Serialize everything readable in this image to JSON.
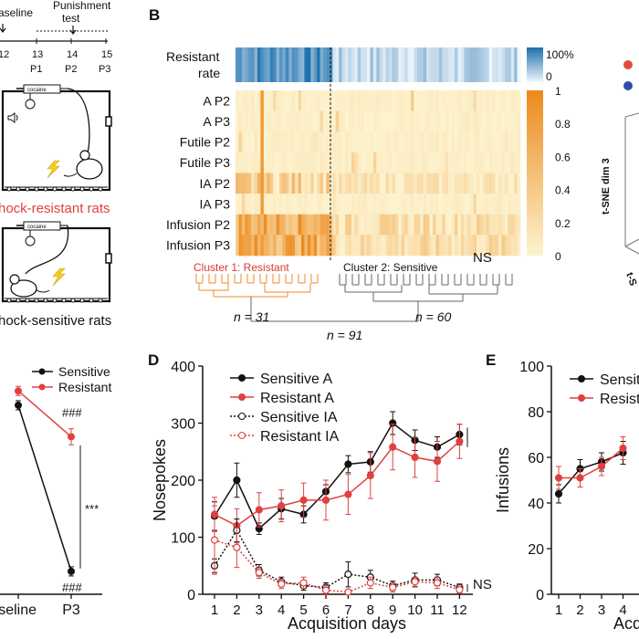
{
  "colors": {
    "sensitive": "#111111",
    "resistant": "#e0413f",
    "cluster1": "#f08a2a",
    "cluster_label_resistant": "#d9392f",
    "heat_high": "#ec8a1c",
    "heat_low": "#fdf3cf",
    "rate_high": "#1d6fad",
    "rate_low": "#f1f7fc",
    "bolt": "#f4d01c"
  },
  "panelA": {
    "timeline": {
      "top_labels": [
        "aseline",
        "Punishment",
        "test"
      ],
      "arrow_icon": "down-arrow-icon",
      "days": [
        "12",
        "13",
        "14",
        "15"
      ],
      "phases": [
        "P1",
        "P2",
        "P3"
      ]
    },
    "chamber_top": {
      "syringe_label": "cocaine",
      "caption": "hock-resistant rats"
    },
    "chamber_bottom": {
      "syringe_label": "cocaine",
      "caption": "hock-sensitive rats"
    }
  },
  "panelB": {
    "letter": "B",
    "rate_label_1": "Resistant",
    "rate_label_2": "rate",
    "rate_scale": [
      "100%",
      "0"
    ],
    "rows": [
      "A P2",
      "A P3",
      "Futile P2",
      "Futile P3",
      "IA P2",
      "IA P3",
      "Infusion P2",
      "Infusion P3"
    ],
    "heat_scale": [
      "1",
      "0.8",
      "0.6",
      "0.4",
      "0.2",
      "0"
    ],
    "cluster1_label": "Cluster 1: Resistant",
    "cluster2_label": "Cluster 2: Sensitive",
    "n_left": "n = 31",
    "n_right": "n = 60",
    "n_total": "n = 91"
  },
  "panelC": {
    "tsne_axis": "t-SNE dim 3",
    "tsne_axis_partial": "t-S"
  },
  "chart_data": [
    {
      "type": "line",
      "panel": "A-bottom",
      "categories": [
        "aseline",
        "P3"
      ],
      "series": [
        {
          "name": "Sensitive",
          "values": [
            330,
            40
          ],
          "err": [
            8,
            8
          ]
        },
        {
          "name": "Resistant",
          "values": [
            355,
            275
          ],
          "err": [
            8,
            14
          ]
        }
      ],
      "annotations": [
        "###",
        "###",
        "***"
      ],
      "legend": "top-right"
    },
    {
      "type": "line",
      "panel": "D",
      "letter": "D",
      "xlabel": "Acquisition days",
      "ylabel": "Nosepokes",
      "ylim": [
        0,
        400
      ],
      "yticks": [
        0,
        100,
        200,
        300,
        400
      ],
      "x": [
        1,
        2,
        3,
        4,
        5,
        6,
        7,
        8,
        9,
        10,
        11,
        12
      ],
      "series": [
        {
          "name": "Sensitive A",
          "style": "solid",
          "marker": "filled",
          "values": [
            137,
            200,
            115,
            150,
            140,
            180,
            228,
            232,
            300,
            270,
            258,
            280
          ],
          "err": [
            25,
            30,
            10,
            18,
            15,
            12,
            15,
            18,
            20,
            18,
            18,
            18
          ]
        },
        {
          "name": "Resistant A",
          "style": "solid",
          "marker": "filled",
          "values": [
            140,
            120,
            148,
            155,
            165,
            165,
            175,
            208,
            258,
            240,
            233,
            268
          ],
          "err": [
            30,
            30,
            30,
            28,
            30,
            35,
            35,
            40,
            40,
            35,
            35,
            30
          ]
        },
        {
          "name": "Sensitive IA",
          "style": "dotted",
          "marker": "open",
          "values": [
            50,
            112,
            42,
            22,
            15,
            12,
            35,
            30,
            15,
            25,
            25,
            12
          ],
          "err": [
            12,
            20,
            10,
            8,
            8,
            8,
            22,
            12,
            8,
            12,
            10,
            6
          ]
        },
        {
          "name": "Resistant IA",
          "style": "dotted",
          "marker": "open",
          "values": [
            95,
            82,
            38,
            18,
            20,
            7,
            4,
            20,
            12,
            22,
            20,
            8
          ],
          "err": [
            60,
            35,
            10,
            8,
            10,
            8,
            4,
            10,
            8,
            8,
            10,
            6
          ]
        }
      ],
      "annotations": [
        "NS",
        "NS"
      ],
      "legend": "top-left"
    },
    {
      "type": "line",
      "panel": "E",
      "letter": "E",
      "xlabel": "Acq",
      "ylabel": "Infusions",
      "ylim": [
        0,
        100
      ],
      "yticks": [
        0,
        20,
        40,
        60,
        80,
        100
      ],
      "x": [
        1,
        2,
        3,
        4
      ],
      "series": [
        {
          "name": "Sensiti",
          "values": [
            44,
            55,
            58,
            62
          ],
          "err": [
            4,
            4,
            4,
            5
          ]
        },
        {
          "name": "Resista",
          "values": [
            51,
            51,
            56,
            64
          ],
          "err": [
            5,
            4,
            4,
            5
          ]
        }
      ],
      "legend": "top-left"
    }
  ]
}
